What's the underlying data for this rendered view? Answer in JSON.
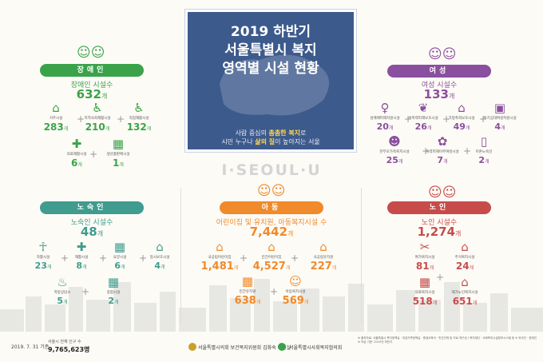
{
  "title": {
    "line1": "2019 하반기",
    "line2": "서울특별시 복지",
    "line3": "영역별 시설 현황",
    "sub_line1_a": "사람 중심의 ",
    "sub_line1_b": "촘촘한 복지",
    "sub_line1_c": "로",
    "sub_line2_a": "시민 누구나 ",
    "sub_line2_b": "삶의 질",
    "sub_line2_c": "이 높아지는 서울"
  },
  "brand": "I·SEOUL·U",
  "colors": {
    "disabled": "#3aa34a",
    "women": "#8a4f9e",
    "homeless": "#3f9c8e",
    "children": "#f08a2b",
    "elderly": "#c84b4b",
    "panel": "#3d5a8c"
  },
  "unit": "개",
  "disabled": {
    "pill": "장애인",
    "label": "장애인 시설수",
    "total": "632",
    "items": [
      {
        "icon": "house-icon",
        "glyph": "⌂",
        "label": "거주시설",
        "value": "283"
      },
      {
        "icon": "wheelchair-person-icon",
        "glyph": "♿",
        "label": "지역사회재활시설",
        "value": "210"
      },
      {
        "icon": "wheelchair-icon",
        "glyph": "♿",
        "label": "직업재활시설",
        "value": "132"
      },
      {
        "icon": "medical-cross-icon",
        "glyph": "✚",
        "label": "의료재활시설",
        "value": "6"
      },
      {
        "icon": "shop-icon",
        "glyph": "▦",
        "label": "생산품판매시설",
        "value": "1"
      }
    ]
  },
  "women": {
    "pill": "여성",
    "label": "여성 시설수",
    "total": "133",
    "items": [
      {
        "icon": "female-symbol-icon",
        "glyph": "♀",
        "label": "성매매피해지원시설",
        "value": "20"
      },
      {
        "icon": "hands-icon",
        "glyph": "❦",
        "label": "성폭력피해보호시설",
        "value": "26"
      },
      {
        "icon": "home-heart-icon",
        "glyph": "⌂",
        "label": "가정폭력보호시설",
        "value": "49"
      },
      {
        "icon": "bag-icon",
        "glyph": "▣",
        "label": "위기십대여성지원시설",
        "value": "4"
      },
      {
        "icon": "mother-child-icon",
        "glyph": "☻",
        "label": "한부모가족복지시설",
        "value": "25"
      },
      {
        "icon": "flower-icon",
        "glyph": "✿",
        "label": "폭력피해이주여성시설",
        "value": "7"
      },
      {
        "icon": "door-icon",
        "glyph": "▯",
        "label": "미혼노숙인",
        "value": "2"
      }
    ]
  },
  "homeless": {
    "pill": "노숙인",
    "label": "노숙인 시설수",
    "total": "48",
    "items": [
      {
        "icon": "rehab-person-icon",
        "glyph": "☥",
        "label": "자활시설",
        "value": "23"
      },
      {
        "icon": "care-hand-icon",
        "glyph": "✚",
        "label": "재활시설",
        "value": "8"
      },
      {
        "icon": "building-icon",
        "glyph": "▦",
        "label": "요양시설",
        "value": "6"
      },
      {
        "icon": "shelter-icon",
        "glyph": "⌂",
        "label": "일시보호시설",
        "value": "4"
      },
      {
        "icon": "meal-icon",
        "glyph": "♨",
        "label": "쪽방상담소",
        "value": "5"
      },
      {
        "icon": "complex-building-icon",
        "glyph": "▦",
        "label": "종합시설",
        "value": "2"
      }
    ]
  },
  "children": {
    "pill": "아동",
    "label": "어린이집 및 유치원, 아동복지시설 수",
    "total": "7,442",
    "items": [
      {
        "icon": "public-daycare-icon",
        "glyph": "⌂",
        "label": "국공립어린이집",
        "value": "1,481"
      },
      {
        "icon": "private-daycare-icon",
        "glyph": "⌂",
        "label": "민간어린이집",
        "value": "4,527"
      },
      {
        "icon": "kindergarten-icon",
        "glyph": "⌂",
        "label": "국공립유치원",
        "value": "227"
      },
      {
        "icon": "private-kindergarten-icon",
        "glyph": "▦",
        "label": "민간유치원",
        "value": "638"
      },
      {
        "icon": "child-welfare-icon",
        "glyph": "☺",
        "label": "아동복지시설",
        "value": "569"
      }
    ]
  },
  "elderly": {
    "pill": "노인",
    "label": "노인 시설수",
    "total": "1,274",
    "items": [
      {
        "icon": "leisure-icon",
        "glyph": "✂",
        "label": "여가복지시설",
        "value": "81"
      },
      {
        "icon": "home-welfare-icon",
        "glyph": "⌂",
        "label": "주거복지시설",
        "value": "24"
      },
      {
        "icon": "medical-welfare-icon",
        "glyph": "▦",
        "label": "의료복지시설",
        "value": "518"
      },
      {
        "icon": "home-care-icon",
        "glyph": "⌂",
        "label": "재가노인복지시설",
        "value": "651"
      }
    ]
  },
  "footer": {
    "date": "2019. 7. 31 기준",
    "pop_label": "서울시 전체 인구 수",
    "pop_value": "9,765,623명",
    "org1": "서울특별시의회 보건복지위원회 김화숙 의원실",
    "org2": "서울특별시사회복지협의회",
    "notes": "※ 출처자료: 서울특별시 복지정책실 · 여성가족정책실 · 평생교육국 · 민간단체 등 자료 재구성 / 복지재단 · 사회복지시설정보시스템 등 ※ 외국인 · 장애인 ※ 작성 기준: 2019년 하반기"
  }
}
